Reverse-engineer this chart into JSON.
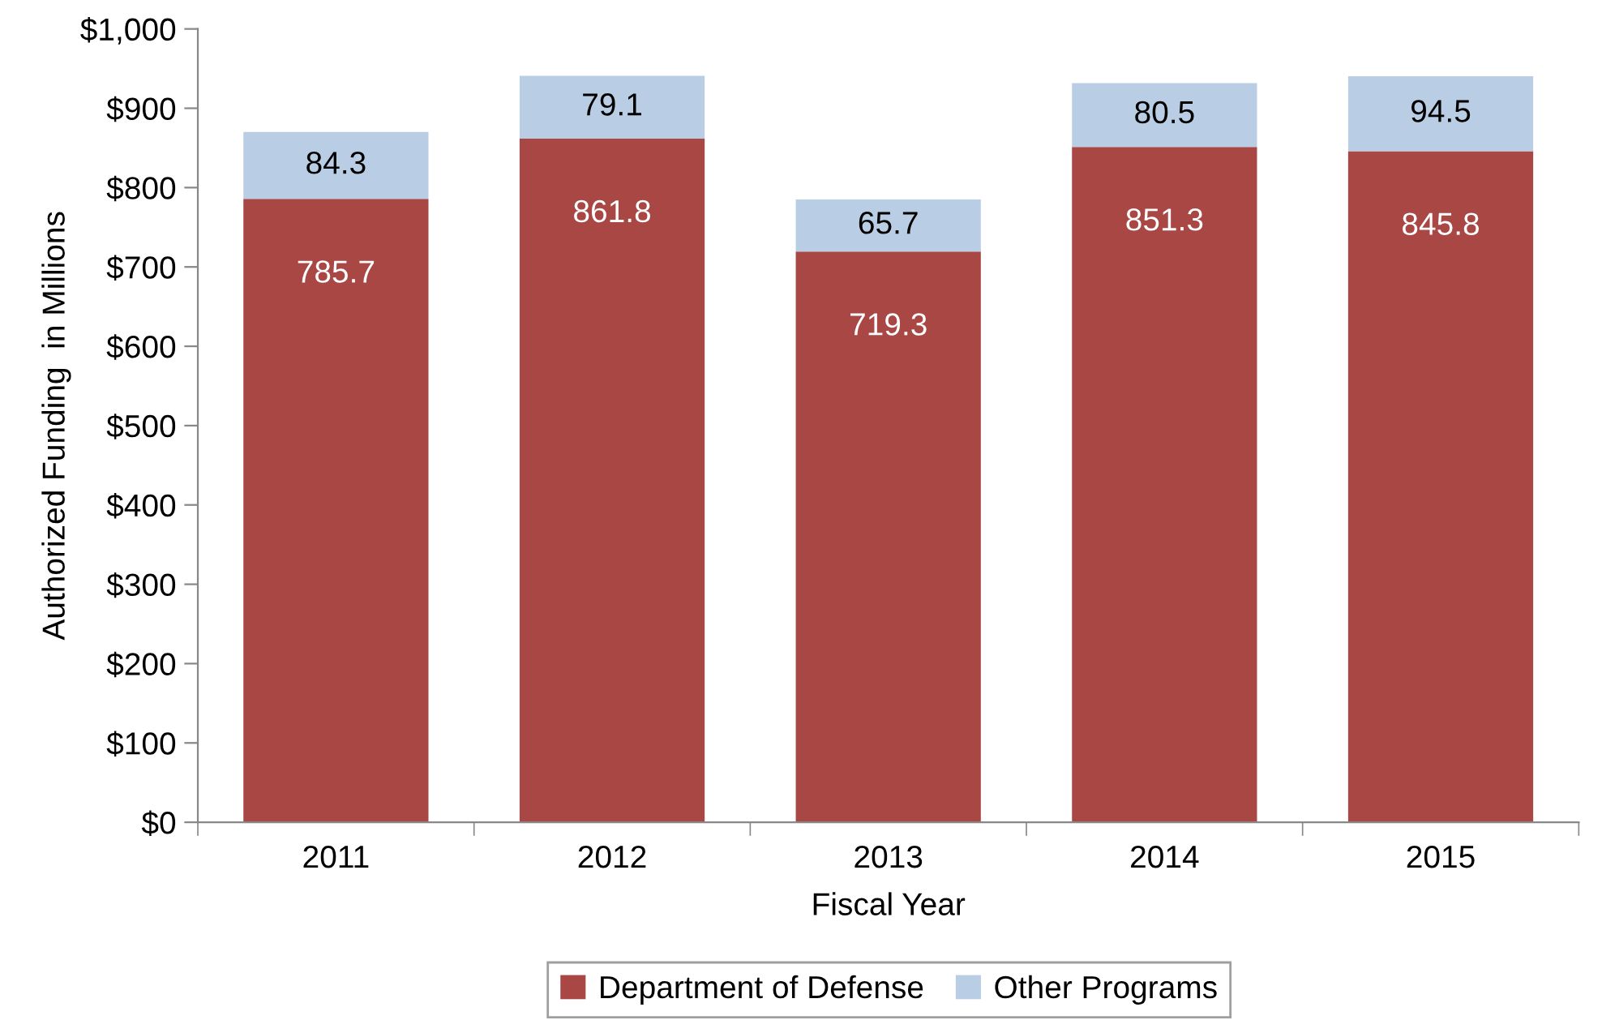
{
  "chart_data": {
    "type": "bar",
    "stacked": true,
    "xlabel": "Fiscal Year",
    "ylabel": "Authorized Funding  in Millions",
    "categories": [
      "2011",
      "2012",
      "2013",
      "2014",
      "2015"
    ],
    "series": [
      {
        "name": "Department of Defense",
        "color": "#a84744",
        "values": [
          785.7,
          861.8,
          719.3,
          851.3,
          845.8
        ]
      },
      {
        "name": "Other Programs",
        "color": "#b9cde5",
        "values": [
          84.3,
          79.1,
          65.7,
          80.5,
          94.5
        ]
      }
    ],
    "ylim": [
      0,
      1000
    ],
    "yticks": [
      {
        "value": 0,
        "label": "$0"
      },
      {
        "value": 100,
        "label": "$100"
      },
      {
        "value": 200,
        "label": "$200"
      },
      {
        "value": 300,
        "label": "$300"
      },
      {
        "value": 400,
        "label": "$400"
      },
      {
        "value": 500,
        "label": "$500"
      },
      {
        "value": 600,
        "label": "$600"
      },
      {
        "value": 700,
        "label": "$700"
      },
      {
        "value": 800,
        "label": "$800"
      },
      {
        "value": 900,
        "label": "$900"
      },
      {
        "value": 1000,
        "label": "$1,000"
      }
    ],
    "data_labels": true,
    "grid": false,
    "legend": "bottom"
  }
}
